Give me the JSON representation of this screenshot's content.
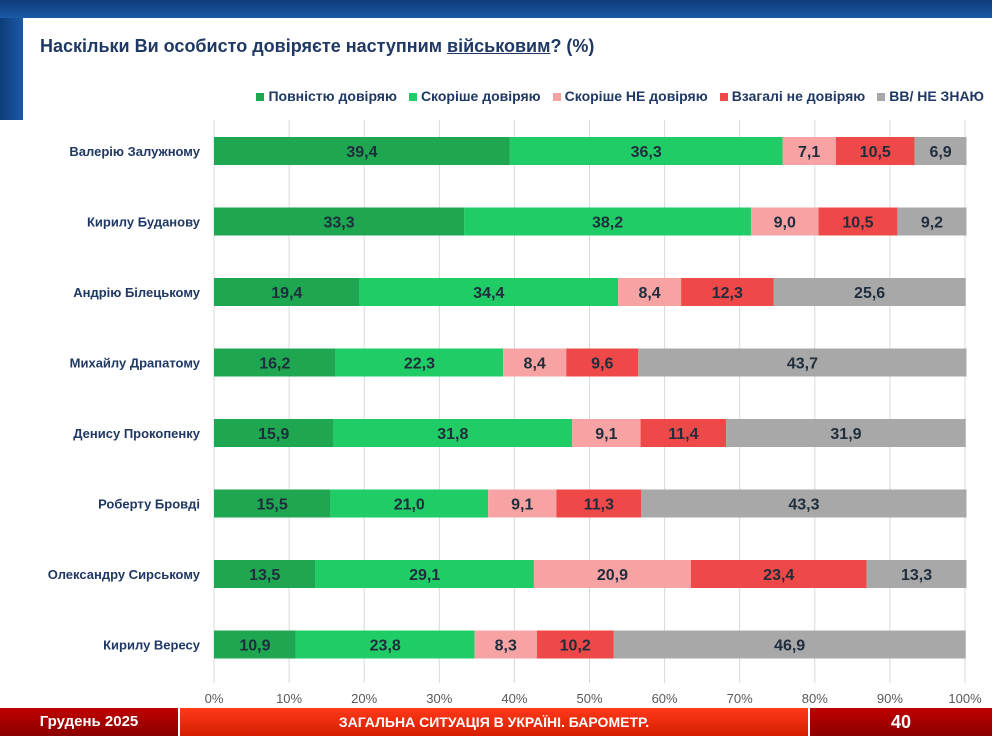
{
  "chart_data": {
    "type": "bar",
    "orientation": "horizontal-stacked",
    "title_parts": {
      "before": "Наскільки Ви особисто довіряєте наступним ",
      "underlined": "військовим",
      "after": "? (%)"
    },
    "categories": [
      "Валерію Залужному",
      "Кирилу Буданову",
      "Андрію Білецькому",
      "Михайлу Драпатому",
      "Денису Прокопенку",
      "Роберту Бровді",
      "Олександру Сирському",
      "Кирилу Вересу"
    ],
    "series": [
      {
        "name": "Повністю довіряю",
        "color": "#1ea650",
        "label_color": "#1f2d3d",
        "values": [
          39.4,
          33.3,
          19.4,
          16.2,
          15.9,
          15.5,
          13.5,
          10.9
        ]
      },
      {
        "name": "Скоріше довіряю",
        "color": "#20cc66",
        "label_color": "#1f2d3d",
        "values": [
          36.3,
          38.2,
          34.4,
          22.3,
          31.8,
          21.0,
          29.1,
          23.8
        ]
      },
      {
        "name": "Скоріше НЕ довіряю",
        "color": "#f7a3a3",
        "label_color": "#1f2d3d",
        "values": [
          7.1,
          9.0,
          8.4,
          8.4,
          9.1,
          9.1,
          20.9,
          8.3
        ]
      },
      {
        "name": "Взагалі не  довіряю",
        "color": "#ef4848",
        "label_color": "#1f2d3d",
        "values": [
          10.5,
          10.5,
          12.3,
          9.6,
          11.4,
          11.3,
          23.4,
          10.2
        ]
      },
      {
        "name": "ВВ/ НЕ ЗНАЮ",
        "color": "#a8a8a8",
        "label_color": "#1f2d3d",
        "values": [
          6.9,
          9.2,
          25.6,
          43.7,
          31.9,
          43.3,
          13.3,
          46.9
        ]
      }
    ],
    "xlim": [
      0,
      100
    ],
    "xticks": [
      "0%",
      "10%",
      "20%",
      "30%",
      "40%",
      "50%",
      "60%",
      "70%",
      "80%",
      "90%",
      "100%"
    ],
    "grid": true,
    "legend_position": "top"
  },
  "footer": {
    "date": "Грудень 2025",
    "section": "ЗАГАЛЬНА СИТУАЦІЯ В УКРАЇНІ. БАРОМЕТР.",
    "page": "40"
  }
}
